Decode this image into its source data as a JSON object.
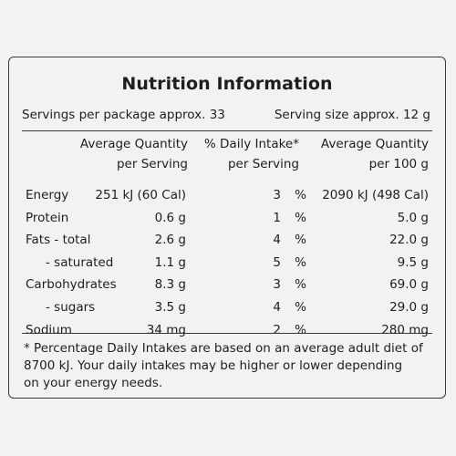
{
  "panel": {
    "title": "Nutrition Information",
    "servings_per_package": "Servings per package approx. 33",
    "serving_size": "Serving size approx. 12 g"
  },
  "headers": {
    "col1_line1": "Average Quantity",
    "col1_line2": "per Serving",
    "col2_line1": "% Daily Intake*",
    "col2_line2": "per Serving",
    "col3_line1": "Average Quantity",
    "col3_line2": "per 100 g"
  },
  "rows": [
    {
      "label": "Energy",
      "per_serving": "251 kJ (60 Cal)",
      "daily_intake": "3",
      "per_100g": "2090 kJ (498 Cal)"
    },
    {
      "label": "Protein",
      "per_serving": "0.6 g",
      "daily_intake": "1",
      "per_100g": "5.0 g"
    },
    {
      "label": "Fats - total",
      "per_serving": "2.6 g",
      "daily_intake": "4",
      "per_100g": "22.0 g"
    },
    {
      "label": "- saturated",
      "per_serving": "1.1 g",
      "daily_intake": "5",
      "per_100g": "9.5 g"
    },
    {
      "label": "Carbohydrates",
      "per_serving": "8.3 g",
      "daily_intake": "3",
      "per_100g": "69.0 g"
    },
    {
      "label": "- sugars",
      "per_serving": "3.5 g",
      "daily_intake": "4",
      "per_100g": "29.0 g"
    },
    {
      "label": "Sodium",
      "per_serving": "34 mg",
      "daily_intake": "2",
      "per_100g": "280 mg"
    }
  ],
  "percent_sign": "%",
  "footnote": {
    "line1": "* Percentage Daily Intakes are based on an average adult diet of",
    "line2": "8700 kJ. Your daily intakes may be higher or lower depending",
    "line3": "on your energy needs."
  }
}
